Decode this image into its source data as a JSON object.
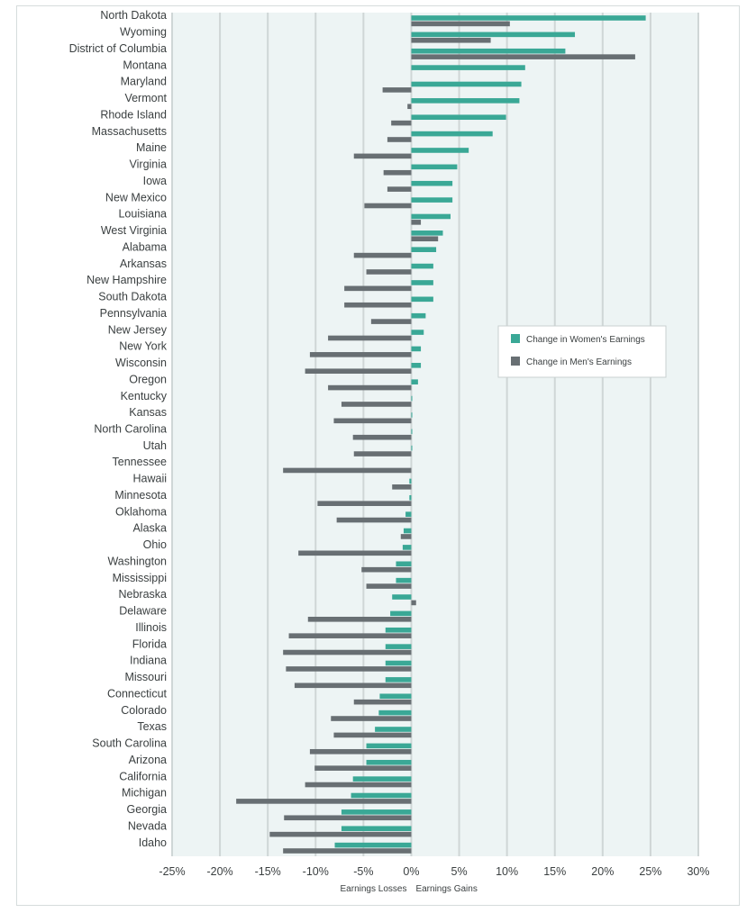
{
  "chart_data": {
    "type": "bar",
    "orientation": "horizontal",
    "title": "",
    "xlabel_left": "Earnings Losses",
    "xlabel_right": "Earnings Gains",
    "xlim": [
      -25,
      30
    ],
    "xticks": [
      -25,
      -20,
      -15,
      -10,
      -5,
      0,
      5,
      10,
      15,
      20,
      25,
      30
    ],
    "xtick_labels": [
      "-25%",
      "-20%",
      "-15%",
      "-10%",
      "-5%",
      "0%",
      "5%",
      "10%",
      "15%",
      "20%",
      "25%",
      "30%"
    ],
    "grid": true,
    "legend_position": "right-middle",
    "colors": {
      "women": "#3aa896",
      "men": "#686f73",
      "plot_bg": "#edf4f4",
      "grid": "#cfd6d6"
    },
    "categories": [
      "North Dakota",
      "Wyoming",
      "District of Columbia",
      "Montana",
      "Maryland",
      "Vermont",
      "Rhode Island",
      "Massachusetts",
      "Maine",
      "Virginia",
      "Iowa",
      "New Mexico",
      "Louisiana",
      "West Virginia",
      "Alabama",
      "Arkansas",
      "New Hampshire",
      "South Dakota",
      "Pennsylvania",
      "New Jersey",
      "New York",
      "Wisconsin",
      "Oregon",
      "Kentucky",
      "Kansas",
      "North Carolina",
      "Utah",
      "Tennessee",
      "Hawaii",
      "Minnesota",
      "Oklahoma",
      "Alaska",
      "Ohio",
      "Washington",
      "Mississippi",
      "Nebraska",
      "Delaware",
      "Illinois",
      "Florida",
      "Indiana",
      "Missouri",
      "Connecticut",
      "Colorado",
      "Texas",
      "South Carolina",
      "Arizona",
      "California",
      "Michigan",
      "Georgia",
      "Nevada",
      "Idaho"
    ],
    "series": [
      {
        "name": "Change in Women's Earnings",
        "values": [
          24.5,
          17.1,
          16.1,
          11.9,
          11.5,
          11.3,
          9.9,
          8.5,
          6.0,
          4.8,
          4.3,
          4.3,
          4.1,
          3.3,
          2.6,
          2.3,
          2.3,
          2.3,
          1.5,
          1.3,
          1.0,
          1.0,
          0.7,
          0.1,
          0.1,
          0.1,
          0.1,
          0.0,
          -0.2,
          -0.2,
          -0.6,
          -0.8,
          -0.9,
          -1.6,
          -1.6,
          -2.0,
          -2.2,
          -2.7,
          -2.7,
          -2.7,
          -2.7,
          -3.3,
          -3.4,
          -3.8,
          -4.7,
          -4.7,
          -6.1,
          -6.3,
          -7.3,
          -7.3,
          -8.0
        ]
      },
      {
        "name": "Change in Men's Earnings",
        "values": [
          10.3,
          8.3,
          23.4,
          0.0,
          -3.0,
          -0.4,
          -2.1,
          -2.5,
          -6.0,
          -2.9,
          -2.5,
          -4.9,
          1.0,
          2.8,
          -6.0,
          -4.7,
          -7.0,
          -7.0,
          -4.2,
          -8.7,
          -10.6,
          -11.1,
          -8.7,
          -7.3,
          -8.1,
          -6.1,
          -6.0,
          -13.4,
          -2.0,
          -9.8,
          -7.8,
          -1.1,
          -11.8,
          -5.2,
          -4.7,
          0.5,
          -10.8,
          -12.8,
          -13.4,
          -13.1,
          -12.2,
          -6.0,
          -8.4,
          -8.1,
          -10.6,
          -10.1,
          -11.1,
          -18.3,
          -13.3,
          -14.8,
          -13.4
        ]
      }
    ]
  }
}
